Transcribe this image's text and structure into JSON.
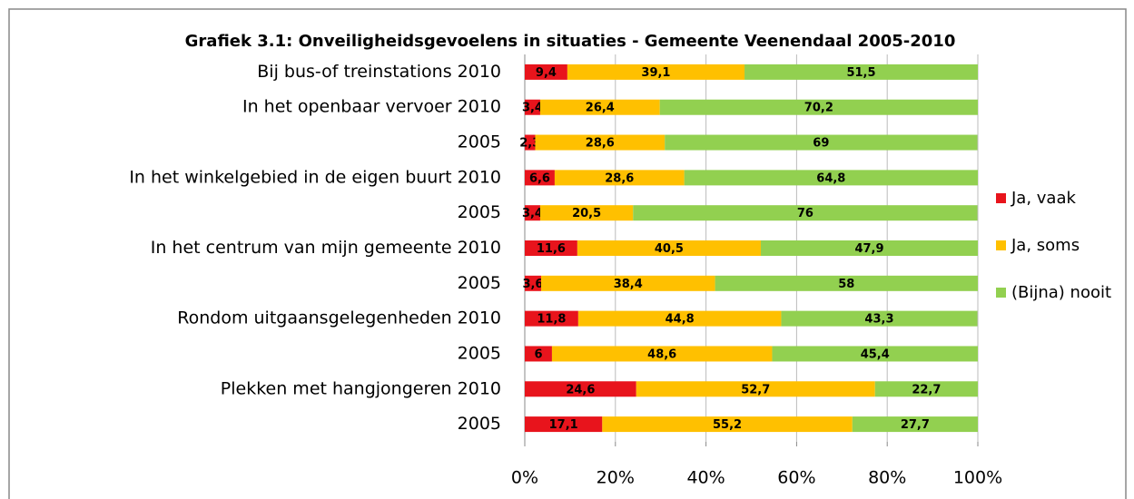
{
  "chart_data": {
    "type": "stacked-bar-horizontal",
    "title": "Grafiek 3.1: Onveiligheidsgevoelens in situaties - Gemeente Veenendaal 2005-2010",
    "categories": [
      "Bij bus-of treinstations 2010",
      "In het openbaar vervoer 2010",
      "2005",
      "In het winkelgebied in de eigen buurt 2010",
      "2005",
      "In het centrum van mijn gemeente 2010",
      "2005",
      "Rondom uitgaansgelegenheden 2010",
      "2005",
      "Plekken met hangjongeren 2010",
      "2005"
    ],
    "series": [
      {
        "name": "Ja, vaak",
        "color": "#e8141c",
        "values": [
          9.4,
          3.4,
          2.3,
          6.6,
          3.4,
          11.6,
          3.6,
          11.8,
          6,
          24.6,
          17.1
        ],
        "value_labels": [
          "9,4",
          "3,4",
          "2,3",
          "6,6",
          "3,4",
          "11,6",
          "3,6",
          "11,8",
          "6",
          "24,6",
          "17,1"
        ]
      },
      {
        "name": "Ja, soms",
        "color": "#ffc000",
        "values": [
          39.1,
          26.4,
          28.6,
          28.6,
          20.5,
          40.5,
          38.4,
          44.8,
          48.6,
          52.7,
          55.2
        ],
        "value_labels": [
          "39,1",
          "26,4",
          "28,6",
          "28,6",
          "20,5",
          "40,5",
          "38,4",
          "44,8",
          "48,6",
          "52,7",
          "55,2"
        ]
      },
      {
        "name": "(Bijna) nooit",
        "color": "#92d050",
        "values": [
          51.5,
          70.2,
          69,
          64.8,
          76,
          47.9,
          58,
          43.3,
          45.4,
          22.7,
          27.7
        ],
        "value_labels": [
          "51,5",
          "70,2",
          "69",
          "64,8",
          "76",
          "47,9",
          "58",
          "43,3",
          "45,4",
          "22,7",
          "27,7"
        ]
      }
    ],
    "xlim": [
      0,
      100
    ],
    "xticks": [
      {
        "value": 0,
        "label": "0%"
      },
      {
        "value": 20,
        "label": "20%"
      },
      {
        "value": 40,
        "label": "40%"
      },
      {
        "value": 60,
        "label": "60%"
      },
      {
        "value": 80,
        "label": "80%"
      },
      {
        "value": 100,
        "label": "100%"
      }
    ],
    "grid": true,
    "legend": "right"
  }
}
